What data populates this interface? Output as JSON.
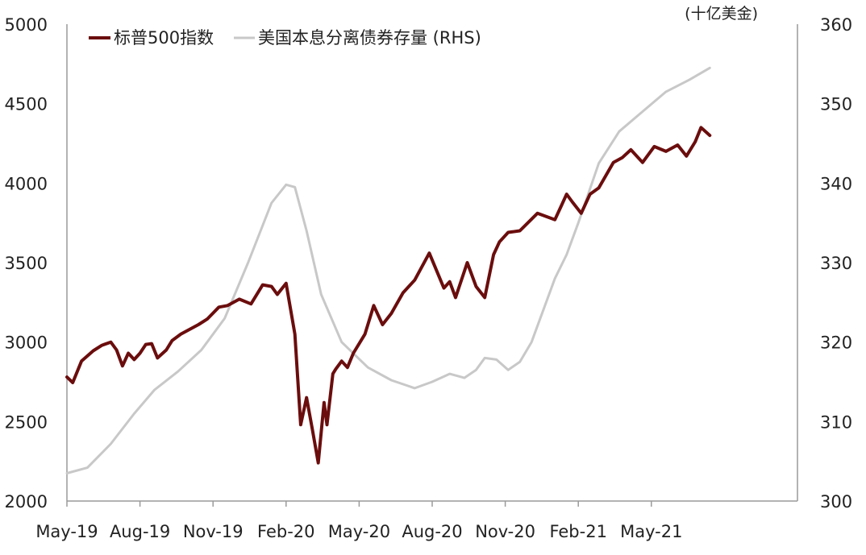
{
  "chart_data": {
    "type": "line",
    "unit_label": "(十亿美金)",
    "x_tick_labels": [
      "May-19",
      "Aug-19",
      "Nov-19",
      "Feb-20",
      "May-20",
      "Aug-20",
      "Nov-20",
      "Feb-21",
      "May-21"
    ],
    "xlim": [
      2019.33,
      2021.83
    ],
    "y_left": {
      "ticks": [
        2000,
        2500,
        3000,
        3500,
        4000,
        4500,
        5000
      ],
      "ylim": [
        2000,
        5000
      ]
    },
    "y_right": {
      "ticks": [
        300,
        310,
        320,
        330,
        340,
        350,
        360
      ],
      "ylim": [
        300,
        360
      ]
    },
    "legend_position": "top-left",
    "colors": {
      "spx": "#6b0d0d",
      "debt": "#c8c8c8",
      "axis": "#9a9a9a"
    },
    "series": [
      {
        "name": "标普500指数",
        "axis": "left",
        "x": [
          2019.33,
          2019.35,
          2019.38,
          2019.42,
          2019.45,
          2019.48,
          2019.5,
          2019.52,
          2019.54,
          2019.56,
          2019.58,
          2019.6,
          2019.62,
          2019.64,
          2019.67,
          2019.69,
          2019.72,
          2019.75,
          2019.78,
          2019.81,
          2019.85,
          2019.88,
          2019.92,
          2019.96,
          2020.0,
          2020.03,
          2020.05,
          2020.08,
          2020.11,
          2020.13,
          2020.15,
          2020.17,
          2020.19,
          2020.21,
          2020.22,
          2020.24,
          2020.25,
          2020.27,
          2020.29,
          2020.31,
          2020.35,
          2020.38,
          2020.41,
          2020.44,
          2020.48,
          2020.52,
          2020.57,
          2020.62,
          2020.64,
          2020.66,
          2020.7,
          2020.73,
          2020.76,
          2020.79,
          2020.81,
          2020.84,
          2020.88,
          2020.94,
          2021.0,
          2021.02,
          2021.04,
          2021.06,
          2021.09,
          2021.12,
          2021.15,
          2021.2,
          2021.23,
          2021.26,
          2021.3,
          2021.34,
          2021.38,
          2021.42,
          2021.45,
          2021.48,
          2021.5,
          2021.53
        ],
        "values": [
          2780,
          2745,
          2880,
          2945,
          2980,
          3000,
          2950,
          2850,
          2930,
          2890,
          2930,
          2985,
          2990,
          2900,
          2950,
          3010,
          3050,
          3080,
          3110,
          3145,
          3220,
          3230,
          3270,
          3240,
          3360,
          3350,
          3300,
          3370,
          3050,
          2480,
          2650,
          2450,
          2240,
          2620,
          2480,
          2800,
          2830,
          2880,
          2840,
          2930,
          3050,
          3230,
          3110,
          3180,
          3310,
          3390,
          3560,
          3340,
          3380,
          3280,
          3500,
          3350,
          3280,
          3550,
          3630,
          3690,
          3700,
          3810,
          3770,
          3850,
          3930,
          3880,
          3810,
          3930,
          3970,
          4130,
          4160,
          4210,
          4130,
          4230,
          4200,
          4240,
          4170,
          4260,
          4350,
          4300
        ]
      },
      {
        "name": "美国本息分离债券存量 (RHS)",
        "axis": "right",
        "x": [
          2019.33,
          2019.4,
          2019.48,
          2019.56,
          2019.63,
          2019.71,
          2019.79,
          2019.87,
          2019.95,
          2020.03,
          2020.08,
          2020.11,
          2020.15,
          2020.2,
          2020.27,
          2020.36,
          2020.44,
          2020.52,
          2020.58,
          2020.64,
          2020.69,
          2020.73,
          2020.76,
          2020.8,
          2020.84,
          2020.88,
          2020.92,
          2020.96,
          2021.0,
          2021.04,
          2021.08,
          2021.15,
          2021.22,
          2021.3,
          2021.38,
          2021.46,
          2021.53
        ],
        "values": [
          303.5,
          304.2,
          307.2,
          311.0,
          314.0,
          316.3,
          319.0,
          323.0,
          330.0,
          337.5,
          339.8,
          339.5,
          334.0,
          326.0,
          320.0,
          316.8,
          315.2,
          314.2,
          315.0,
          316.0,
          315.5,
          316.5,
          318.0,
          317.8,
          316.5,
          317.5,
          320.0,
          324.0,
          328.0,
          331.0,
          335.0,
          342.5,
          346.5,
          349.0,
          351.5,
          353.0,
          354.5
        ]
      }
    ]
  }
}
